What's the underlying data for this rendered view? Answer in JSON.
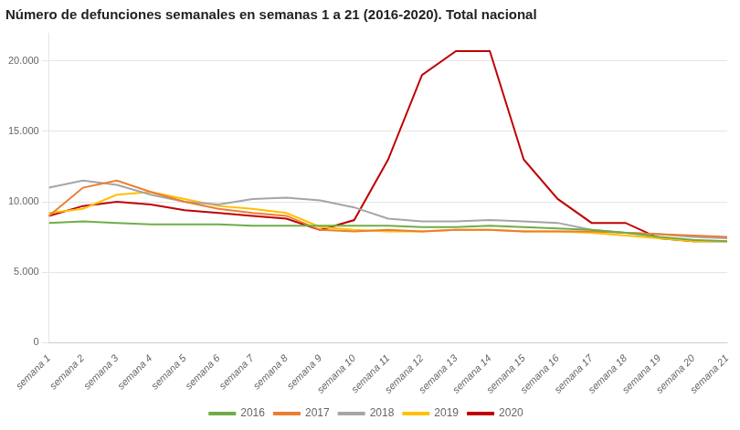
{
  "chart_data": {
    "type": "line",
    "title": "Número de defunciones semanales en semanas 1 a 21 (2016-2020). Total nacional",
    "categories": [
      "semana 1",
      "semana 2",
      "semana 3",
      "semana 4",
      "semana 5",
      "semana 6",
      "semana 7",
      "semana 8",
      "semana 9",
      "semana 10",
      "semana 11",
      "semana 12",
      "semana 13",
      "semana 14",
      "semana 15",
      "semana 16",
      "semana 17",
      "semana 18",
      "semana 19",
      "semana 20",
      "semana 21"
    ],
    "series": [
      {
        "name": "2016",
        "color": "#70ad47",
        "values": [
          8500,
          8600,
          8500,
          8400,
          8400,
          8400,
          8300,
          8300,
          8300,
          8300,
          8300,
          8200,
          8200,
          8300,
          8200,
          8100,
          8000,
          7800,
          7500,
          7300,
          7200
        ]
      },
      {
        "name": "2017",
        "color": "#ed7d31",
        "values": [
          9000,
          11000,
          11500,
          10700,
          10000,
          9500,
          9200,
          9000,
          8000,
          7900,
          8000,
          7900,
          8000,
          8000,
          7900,
          7900,
          7900,
          7800,
          7700,
          7600,
          7500
        ]
      },
      {
        "name": "2018",
        "color": "#a5a5a5",
        "values": [
          11000,
          11500,
          11200,
          10500,
          10000,
          9800,
          10200,
          10300,
          10100,
          9600,
          8800,
          8600,
          8600,
          8700,
          8600,
          8500,
          8000,
          7800,
          7700,
          7500,
          7400
        ]
      },
      {
        "name": "2019",
        "color": "#ffc000",
        "values": [
          9200,
          9500,
          10500,
          10700,
          10200,
          9700,
          9500,
          9200,
          8200,
          8000,
          7900,
          7900,
          8000,
          8000,
          7900,
          7900,
          7800,
          7600,
          7400,
          7200,
          7200
        ]
      },
      {
        "name": "2020",
        "color": "#c00000",
        "values": [
          9000,
          9700,
          10000,
          9800,
          9400,
          9200,
          9000,
          8800,
          8000,
          8700,
          13000,
          19000,
          20700,
          20700,
          13000,
          10200,
          8500,
          8500,
          7400,
          7200,
          7200
        ]
      }
    ],
    "ylim": [
      0,
      22000
    ],
    "yticks": [
      0,
      {
        "value": 5000,
        "label": "5.000"
      },
      {
        "value": 10000,
        "label": "10.000"
      },
      {
        "value": 15000,
        "label": "15.000"
      },
      {
        "value": 20000,
        "label": "20.000"
      }
    ],
    "grid": "y",
    "legend": "bottom"
  }
}
